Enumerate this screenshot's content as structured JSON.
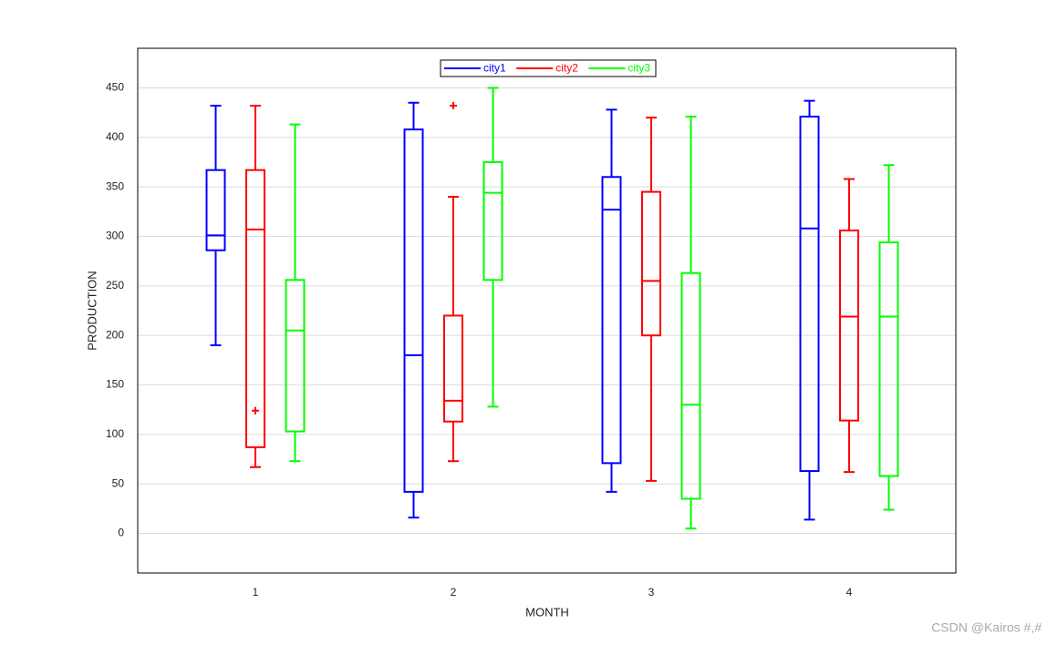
{
  "chart_data": {
    "type": "box",
    "x_label": "MONTH",
    "y_label": "PRODUCTION",
    "categories": [
      "1",
      "2",
      "3",
      "4"
    ],
    "ylim": [
      -40,
      490
    ],
    "yticks": [
      0,
      50,
      100,
      150,
      200,
      250,
      300,
      350,
      400,
      450
    ],
    "grid": true,
    "legend": "top",
    "series": [
      {
        "name": "city1",
        "color": "#0000ff",
        "values": [
          {
            "whisker_low": 190,
            "q1": 286,
            "median": 301,
            "q3": 367,
            "whisker_high": 432
          },
          {
            "whisker_low": 16,
            "q1": 42,
            "median": 180,
            "q3": 408,
            "whisker_high": 435
          },
          {
            "whisker_low": 42,
            "q1": 71,
            "median": 327,
            "q3": 360,
            "whisker_high": 428
          },
          {
            "whisker_low": 14,
            "q1": 63,
            "median": 308,
            "q3": 421,
            "whisker_high": 437
          }
        ]
      },
      {
        "name": "city2",
        "color": "#ff0000",
        "values": [
          {
            "whisker_low": 67,
            "q1": 87,
            "median": 307,
            "q3": 367,
            "whisker_high": 432
          },
          {
            "whisker_low": 73,
            "q1": 113,
            "median": 134,
            "q3": 220,
            "whisker_high": 340
          },
          {
            "whisker_low": 53,
            "q1": 200,
            "median": 255,
            "q3": 345,
            "whisker_high": 420
          },
          {
            "whisker_low": 62,
            "q1": 114,
            "median": 219,
            "q3": 306,
            "whisker_high": 358
          }
        ],
        "outliers": [
          {
            "category": "1",
            "value": 124
          },
          {
            "category": "2",
            "value": 432
          }
        ]
      },
      {
        "name": "city3",
        "color": "#00ff00",
        "values": [
          {
            "whisker_low": 73,
            "q1": 103,
            "median": 205,
            "q3": 256,
            "whisker_high": 413
          },
          {
            "whisker_low": 128,
            "q1": 256,
            "median": 344,
            "q3": 375,
            "whisker_high": 450
          },
          {
            "whisker_low": 5,
            "q1": 35,
            "median": 130,
            "q3": 263,
            "whisker_high": 421
          },
          {
            "whisker_low": 24,
            "q1": 58,
            "median": 219,
            "q3": 294,
            "whisker_high": 372
          }
        ]
      }
    ]
  },
  "watermark": "CSDN @Kairos #,#"
}
